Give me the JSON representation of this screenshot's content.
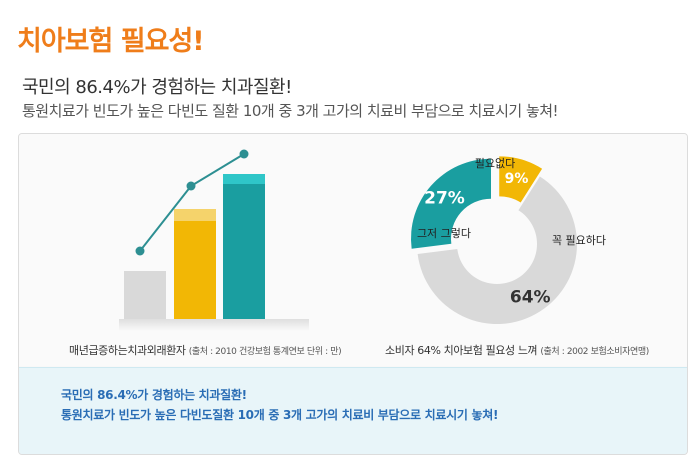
{
  "header": {
    "title": "치아보험 필요성!",
    "headline": "국민의 86.4%가 경험하는 치과질환!",
    "subheadline": "통원치료가 빈도가 높은 다빈도 질환 10개 중 3개 고가의 치료비 부담으로 치료시기 놓쳐!"
  },
  "left_chart": {
    "caption": "매년급증하는치과외래환자",
    "source": "(출처 : 2010 건강보험 통계연보 단위 : 만)"
  },
  "right_chart": {
    "caption": "소비자 64% 치아보험 필요성 느껴",
    "source": "(출처 : 2002 보험소비자연맹)"
  },
  "chart_data": {
    "type": "pie",
    "variant": "donut",
    "slices": [
      {
        "label": "꼭 필요하다",
        "value": 64,
        "display": "64%",
        "color": "#d9d9d9"
      },
      {
        "label": "그저 그렇다",
        "value": 27,
        "display": "27%",
        "color": "#1a9ea0"
      },
      {
        "label": "필요없다",
        "value": 9,
        "display": "9%",
        "color": "#f2b705"
      }
    ]
  },
  "colors": {
    "accent_orange": "#ef7d1a",
    "bar_gray": "#d9d9d9",
    "bar_yellow": "#f2b705",
    "bar_teal": "#1a9ea0",
    "band_text": "#2a6db5"
  },
  "bottom_note": {
    "line1": "국민의 86.4%가 경험하는 치과질환!",
    "line2": "통원치료가 빈도가 높은 다빈도질환 10개 중 3개 고가의 치료비 부담으로 치료시기 놓쳐!"
  }
}
